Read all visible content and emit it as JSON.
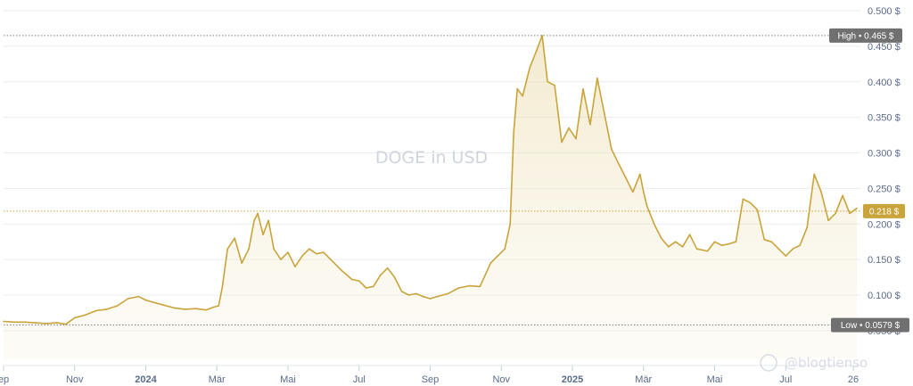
{
  "chart_data": {
    "type": "area",
    "title": "DOGE in USD",
    "ylim": [
      0.04,
      0.5
    ],
    "y_ticks": [
      "0.500 $",
      "0.450 $",
      "0.400 $",
      "0.350 $",
      "0.300 $",
      "0.250 $",
      "0.200 $",
      "0.150 $",
      "0.100 $",
      "0.050 $"
    ],
    "x_ticks": [
      {
        "label": "ep",
        "t": 0.0,
        "bold": false
      },
      {
        "label": "Nov",
        "t": 2.0,
        "bold": false
      },
      {
        "label": "2024",
        "t": 4.0,
        "bold": true
      },
      {
        "label": "Mär",
        "t": 6.0,
        "bold": false
      },
      {
        "label": "Mai",
        "t": 8.0,
        "bold": false
      },
      {
        "label": "Jul",
        "t": 10.0,
        "bold": false
      },
      {
        "label": "Sep",
        "t": 12.0,
        "bold": false
      },
      {
        "label": "Nov",
        "t": 14.0,
        "bold": false
      },
      {
        "label": "2025",
        "t": 16.0,
        "bold": true
      },
      {
        "label": "Mär",
        "t": 18.0,
        "bold": false
      },
      {
        "label": "Mai",
        "t": 20.0,
        "bold": false
      },
      {
        "label": "Jul",
        "t": 22.0,
        "bold": false
      },
      {
        "label": "26",
        "t": 23.9,
        "bold": false
      }
    ],
    "xlim": [
      0,
      24.1
    ],
    "grid": true,
    "high": {
      "label": "High",
      "value": 0.465,
      "text": "0.465 $"
    },
    "low": {
      "label": "Low",
      "value": 0.0579,
      "text": "0.0579 $"
    },
    "current": {
      "value": 0.218,
      "text": "0.218 $"
    },
    "color": "#c9a43a",
    "series": [
      {
        "x": [
          0.0,
          0.3,
          0.6,
          0.9,
          1.2,
          1.5,
          1.75,
          2.0,
          2.3,
          2.6,
          2.9,
          3.2,
          3.5,
          3.8,
          4.0,
          4.2,
          4.5,
          4.8,
          5.1,
          5.4,
          5.7,
          5.9,
          6.05,
          6.15,
          6.3,
          6.5,
          6.7,
          6.9,
          7.05,
          7.15,
          7.3,
          7.45,
          7.6,
          7.8,
          8.0,
          8.2,
          8.4,
          8.6,
          8.8,
          9.0,
          9.2,
          9.5,
          9.8,
          10.0,
          10.2,
          10.4,
          10.6,
          10.8,
          11.0,
          11.2,
          11.4,
          11.6,
          11.8,
          12.0,
          12.2,
          12.5,
          12.8,
          13.1,
          13.4,
          13.7,
          13.9,
          14.1,
          14.25,
          14.35,
          14.45,
          14.6,
          14.8,
          15.0,
          15.15,
          15.3,
          15.5,
          15.7,
          15.9,
          16.1,
          16.3,
          16.5,
          16.7,
          16.9,
          17.1,
          17.3,
          17.5,
          17.7,
          17.9,
          18.0,
          18.1,
          18.3,
          18.5,
          18.7,
          18.9,
          19.1,
          19.3,
          19.5,
          19.8,
          20.0,
          20.2,
          20.4,
          20.6,
          20.8,
          21.0,
          21.2,
          21.4,
          21.6,
          21.8,
          22.0,
          22.2,
          22.4,
          22.6,
          22.8,
          23.0,
          23.2,
          23.4,
          23.6,
          23.8,
          24.0
        ],
        "y": [
          0.063,
          0.062,
          0.062,
          0.061,
          0.06,
          0.061,
          0.059,
          0.068,
          0.072,
          0.078,
          0.08,
          0.085,
          0.095,
          0.098,
          0.093,
          0.09,
          0.086,
          0.082,
          0.08,
          0.081,
          0.079,
          0.083,
          0.085,
          0.11,
          0.165,
          0.18,
          0.145,
          0.165,
          0.205,
          0.215,
          0.185,
          0.205,
          0.165,
          0.15,
          0.16,
          0.14,
          0.155,
          0.165,
          0.158,
          0.16,
          0.15,
          0.135,
          0.122,
          0.12,
          0.11,
          0.112,
          0.128,
          0.138,
          0.125,
          0.105,
          0.1,
          0.102,
          0.098,
          0.095,
          0.098,
          0.102,
          0.11,
          0.113,
          0.112,
          0.145,
          0.155,
          0.165,
          0.2,
          0.33,
          0.39,
          0.38,
          0.42,
          0.445,
          0.465,
          0.4,
          0.395,
          0.315,
          0.335,
          0.32,
          0.39,
          0.34,
          0.405,
          0.355,
          0.305,
          0.285,
          0.265,
          0.245,
          0.27,
          0.245,
          0.225,
          0.2,
          0.18,
          0.168,
          0.175,
          0.168,
          0.185,
          0.165,
          0.162,
          0.175,
          0.17,
          0.172,
          0.175,
          0.235,
          0.23,
          0.22,
          0.178,
          0.175,
          0.165,
          0.155,
          0.165,
          0.17,
          0.195,
          0.27,
          0.245,
          0.205,
          0.215,
          0.24,
          0.215,
          0.222
        ]
      }
    ]
  },
  "credit": "@blogtienso"
}
